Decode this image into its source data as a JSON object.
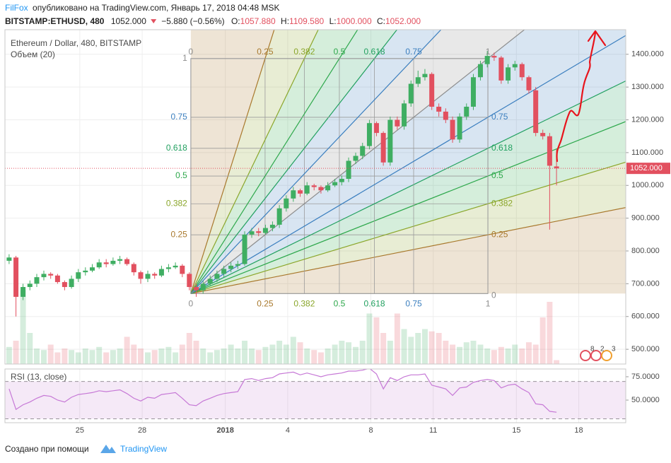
{
  "header": {
    "author": "FilFox",
    "published": "опубликовано на TradingView.com, Январь 17, 2018 04:48 MSK",
    "symbol": "BITSTAMP:ETHUSD, 480",
    "last": "1052.000",
    "change": "−5.880 (−0.56%)",
    "ohlc": [
      {
        "label": "O:",
        "value": "1057.880"
      },
      {
        "label": "H:",
        "value": "1109.580"
      },
      {
        "label": "L:",
        "value": "1000.000"
      },
      {
        "label": "C:",
        "value": "1052.000"
      }
    ]
  },
  "chart_data": [
    {
      "type": "candlestick",
      "title": "Ethereum / Dollar, 480, BITSTAMP",
      "subtitle": "Объем (20)",
      "x": [
        21.6,
        21.93,
        22.27,
        22.6,
        22.93,
        23.27,
        23.6,
        23.93,
        24.27,
        24.6,
        24.93,
        25.27,
        25.6,
        25.93,
        26.27,
        26.6,
        26.93,
        27.27,
        27.6,
        27.93,
        28.27,
        28.6,
        28.93,
        29.27,
        29.6,
        29.93,
        30.27,
        30.6,
        30.93,
        31.27,
        31.6,
        31.93,
        32.27,
        32.6,
        32.93,
        33.27,
        33.6,
        33.93,
        34.27,
        34.6,
        34.93,
        35.27,
        35.6,
        35.93,
        36.27,
        36.6,
        36.93,
        37.27,
        37.6,
        37.93,
        38.27,
        38.6,
        38.93,
        39.27,
        39.6,
        39.93,
        40.27,
        40.6,
        40.93,
        41.27,
        41.6,
        41.93,
        42.27,
        42.6,
        42.93,
        43.27,
        43.6,
        43.93,
        44.27,
        44.6,
        44.93,
        45.27,
        45.6,
        45.93,
        46.27,
        46.6,
        46.93,
        47.27,
        47.6,
        47.93
      ],
      "open": [
        770,
        780,
        660,
        690,
        700,
        720,
        730,
        725,
        705,
        690,
        715,
        735,
        740,
        750,
        765,
        760,
        770,
        775,
        760,
        735,
        715,
        730,
        725,
        745,
        750,
        755,
        730,
        690,
        680,
        700,
        715,
        730,
        745,
        755,
        760,
        850,
        860,
        855,
        870,
        880,
        930,
        960,
        985,
        975,
        1000,
        995,
        985,
        1000,
        1010,
        1020,
        1075,
        1090,
        1120,
        1190,
        1160,
        1070,
        1200,
        1180,
        1250,
        1310,
        1330,
        1340,
        1240,
        1225,
        1200,
        1140,
        1210,
        1240,
        1330,
        1370,
        1395,
        1390,
        1320,
        1360,
        1370,
        1330,
        1290,
        1160,
        1150,
        1057.88
      ],
      "high": [
        790,
        785,
        700,
        710,
        730,
        740,
        735,
        730,
        710,
        725,
        745,
        750,
        760,
        775,
        775,
        780,
        785,
        780,
        765,
        740,
        740,
        735,
        755,
        760,
        765,
        760,
        735,
        700,
        710,
        725,
        740,
        755,
        765,
        770,
        860,
        870,
        870,
        880,
        890,
        940,
        970,
        995,
        990,
        1010,
        1005,
        1000,
        1010,
        1020,
        1030,
        1085,
        1100,
        1130,
        1200,
        1195,
        1165,
        1210,
        1210,
        1260,
        1320,
        1350,
        1355,
        1345,
        1250,
        1235,
        1210,
        1220,
        1250,
        1340,
        1380,
        1410,
        1405,
        1395,
        1370,
        1380,
        1375,
        1335,
        1300,
        1170,
        1160,
        1109.58
      ],
      "low": [
        760,
        600,
        650,
        680,
        690,
        710,
        715,
        700,
        680,
        685,
        705,
        725,
        735,
        745,
        750,
        755,
        760,
        755,
        725,
        700,
        705,
        715,
        720,
        735,
        745,
        720,
        680,
        660,
        670,
        695,
        705,
        720,
        735,
        745,
        755,
        840,
        845,
        850,
        860,
        870,
        920,
        950,
        965,
        970,
        985,
        975,
        980,
        995,
        1000,
        1010,
        1065,
        1080,
        1110,
        1150,
        1060,
        1060,
        1170,
        1170,
        1240,
        1300,
        1320,
        1230,
        1210,
        1190,
        1130,
        1130,
        1200,
        1230,
        1320,
        1360,
        1380,
        1310,
        1310,
        1350,
        1320,
        1280,
        1150,
        1140,
        865,
        1000
      ],
      "close": [
        780,
        660,
        690,
        700,
        720,
        730,
        725,
        705,
        690,
        715,
        735,
        740,
        750,
        765,
        760,
        770,
        775,
        760,
        735,
        715,
        730,
        725,
        745,
        750,
        755,
        730,
        690,
        680,
        700,
        715,
        730,
        745,
        755,
        760,
        850,
        860,
        855,
        870,
        880,
        930,
        960,
        985,
        975,
        1000,
        995,
        985,
        1000,
        1010,
        1020,
        1075,
        1090,
        1120,
        1190,
        1160,
        1070,
        1200,
        1180,
        1250,
        1310,
        1330,
        1340,
        1240,
        1225,
        1200,
        1140,
        1210,
        1240,
        1330,
        1370,
        1395,
        1390,
        1320,
        1360,
        1370,
        1330,
        1290,
        1160,
        1150,
        1060,
        1052
      ],
      "volume": [
        22,
        30,
        95,
        40,
        20,
        18,
        25,
        15,
        20,
        18,
        15,
        20,
        18,
        22,
        15,
        18,
        20,
        35,
        25,
        20,
        15,
        18,
        20,
        22,
        15,
        25,
        40,
        30,
        20,
        15,
        18,
        20,
        25,
        20,
        30,
        20,
        18,
        22,
        25,
        30,
        25,
        35,
        28,
        20,
        18,
        15,
        20,
        25,
        30,
        28,
        22,
        30,
        65,
        60,
        40,
        30,
        65,
        45,
        35,
        40,
        45,
        42,
        40,
        30,
        25,
        22,
        28,
        30,
        25,
        20,
        18,
        22,
        20,
        25,
        20,
        28,
        25,
        60,
        80,
        5
      ],
      "up_color": "#3fae62",
      "down_color": "#e2505f",
      "xlim": [
        21.4,
        51.26
      ],
      "xticks": [
        25,
        28,
        {
          "value": 32,
          "label": "2018"
        },
        {
          "value": 35,
          "label": "4"
        },
        {
          "value": 39,
          "label": "8"
        },
        {
          "value": 42,
          "label": "11"
        },
        {
          "value": 46,
          "label": "15"
        },
        {
          "value": 49,
          "label": "18"
        }
      ],
      "ylim": [
        455,
        1475
      ],
      "yticks": [
        {
          "value": 500,
          "label": "500.000"
        },
        {
          "value": 600,
          "label": "600.000"
        },
        {
          "value": 700,
          "label": "700.000"
        },
        {
          "value": 800,
          "label": "800.000"
        },
        {
          "value": 900,
          "label": "900.000"
        },
        {
          "value": 1000,
          "label": "1000.000"
        },
        {
          "value": 1100,
          "label": "1100.000"
        },
        {
          "value": 1200,
          "label": "1200.000"
        },
        {
          "value": 1300,
          "label": "1300.000"
        },
        {
          "value": 1400,
          "label": "1400.000"
        }
      ],
      "last_price": {
        "value": 1052,
        "label": "1052.000"
      },
      "grid": true,
      "gann": {
        "start": [
          30.34,
          670
        ],
        "end": [
          44.63,
          1387
        ],
        "levels": [
          0,
          0.25,
          0.382,
          0.5,
          0.618,
          0.75,
          1
        ],
        "colors": [
          "#8c8c8c",
          "#a8782c",
          "#8aa62a",
          "#2ea84c",
          "#22a060",
          "#3b7fbf",
          "#8c8c8c"
        ]
      }
    },
    {
      "type": "line",
      "title": "RSI (13, close)",
      "color": "#c678d6",
      "values": [
        62,
        40,
        45,
        48,
        52,
        55,
        54,
        50,
        48,
        53,
        56,
        57,
        58,
        60,
        59,
        60,
        61,
        57,
        52,
        49,
        53,
        52,
        56,
        57,
        58,
        52,
        45,
        44,
        49,
        52,
        55,
        57,
        58,
        59,
        72,
        73,
        71,
        73,
        74,
        78,
        79,
        80,
        77,
        79,
        77,
        75,
        77,
        78,
        79,
        81,
        81,
        82,
        84,
        78,
        62,
        74,
        71,
        75,
        77,
        77,
        78,
        66,
        64,
        62,
        55,
        63,
        64,
        69,
        71,
        72,
        71,
        63,
        66,
        67,
        62,
        58,
        46,
        45,
        38,
        37
      ],
      "ylim": [
        25.8,
        83.3
      ],
      "yticks": [
        {
          "value": 75,
          "label": "75.0000"
        },
        {
          "value": 50,
          "label": "50.0000"
        }
      ],
      "bands": [
        30,
        70
      ]
    }
  ],
  "events": [
    "8",
    "2",
    "3"
  ],
  "footer": {
    "text": "Создано при помощи",
    "brand": "TradingView"
  }
}
